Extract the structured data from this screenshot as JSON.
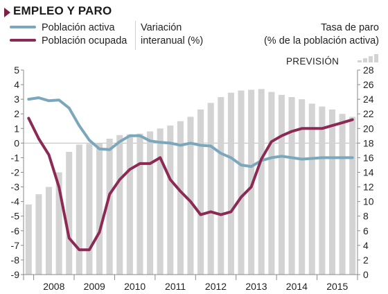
{
  "header": {
    "title": "EMPLEO Y PARO",
    "left_axis_note_line1": "Variación",
    "left_axis_note_line2": "interanual (%)",
    "right_axis_note_line1": "Tasa de paro",
    "right_axis_note_line2": "(% de la población activa)",
    "forecast_label": "PREVISIÓN"
  },
  "legend": {
    "active": "Población activa",
    "employed": "Población ocupada"
  },
  "colors": {
    "active": "#7ba7bd",
    "employed": "#8c2a55",
    "bars": "#d3d3d3",
    "title_mark": "#7a2148"
  },
  "chart_data": {
    "type": "bar+line",
    "x_categories": [
      "2008",
      "2009",
      "2010",
      "2011",
      "2012",
      "2013",
      "2014",
      "2015"
    ],
    "quarters": [
      "2007-Q4",
      "2008-Q1",
      "2008-Q2",
      "2008-Q3",
      "2008-Q4",
      "2009-Q1",
      "2009-Q2",
      "2009-Q3",
      "2009-Q4",
      "2010-Q1",
      "2010-Q2",
      "2010-Q3",
      "2010-Q4",
      "2011-Q1",
      "2011-Q2",
      "2011-Q3",
      "2011-Q4",
      "2012-Q1",
      "2012-Q2",
      "2012-Q3",
      "2012-Q4",
      "2013-Q1",
      "2013-Q2",
      "2013-Q3",
      "2013-Q4",
      "2014-Q1",
      "2014-Q2",
      "2014-Q3",
      "2014-Q4",
      "2015-Q1",
      "2015-Q2",
      "2015-Q3",
      "2015-Q4"
    ],
    "y_left": {
      "label": "Variación interanual (%)",
      "min": -9,
      "max": 5,
      "ticks": [
        5,
        4,
        3,
        2,
        1,
        0,
        -1,
        -2,
        -3,
        -4,
        -5,
        -6,
        -7,
        -8,
        -9
      ]
    },
    "y_right": {
      "label": "Tasa de paro (% de la población activa)",
      "min": 0,
      "max": 28,
      "ticks": [
        28,
        26,
        24,
        22,
        20,
        18,
        16,
        14,
        12,
        10,
        8,
        6,
        4,
        2,
        0
      ]
    },
    "series": [
      {
        "name": "Población activa",
        "axis": "left",
        "type": "line",
        "values": [
          3.0,
          3.1,
          2.9,
          2.95,
          2.4,
          1.2,
          0.2,
          -0.4,
          -0.45,
          0.1,
          0.5,
          0.5,
          0.15,
          0.05,
          0.0,
          -0.15,
          0.0,
          -0.15,
          -0.2,
          -0.7,
          -1.0,
          -1.5,
          -1.6,
          -1.2,
          -1.0,
          -0.9,
          -1.0,
          -1.1,
          -1.05,
          -1.0,
          -1.0,
          -1.0,
          -1.0
        ]
      },
      {
        "name": "Población ocupada",
        "axis": "left",
        "type": "line",
        "values": [
          1.7,
          0.3,
          -0.8,
          -3.0,
          -6.5,
          -7.3,
          -7.3,
          -6.1,
          -3.5,
          -2.5,
          -1.8,
          -1.4,
          -1.4,
          -1.0,
          -2.5,
          -3.3,
          -4.0,
          -4.9,
          -4.7,
          -4.9,
          -4.7,
          -3.7,
          -3.0,
          -1.1,
          0.1,
          0.5,
          0.8,
          1.0,
          1.0,
          1.0,
          1.2,
          1.4,
          1.6
        ]
      },
      {
        "name": "Tasa de paro",
        "axis": "right",
        "type": "bar",
        "values": [
          9.6,
          11.0,
          12.0,
          14.0,
          16.8,
          17.8,
          17.9,
          18.0,
          18.6,
          19.1,
          19.2,
          19.3,
          19.6,
          20.0,
          20.4,
          21.0,
          21.6,
          22.6,
          23.5,
          24.3,
          24.9,
          25.2,
          25.3,
          25.4,
          25.0,
          24.6,
          24.3,
          24.0,
          23.4,
          23.0,
          22.6,
          22.0,
          21.6
        ]
      }
    ],
    "forecast_from_index": 30,
    "grid": "horizontal-zero-line"
  }
}
